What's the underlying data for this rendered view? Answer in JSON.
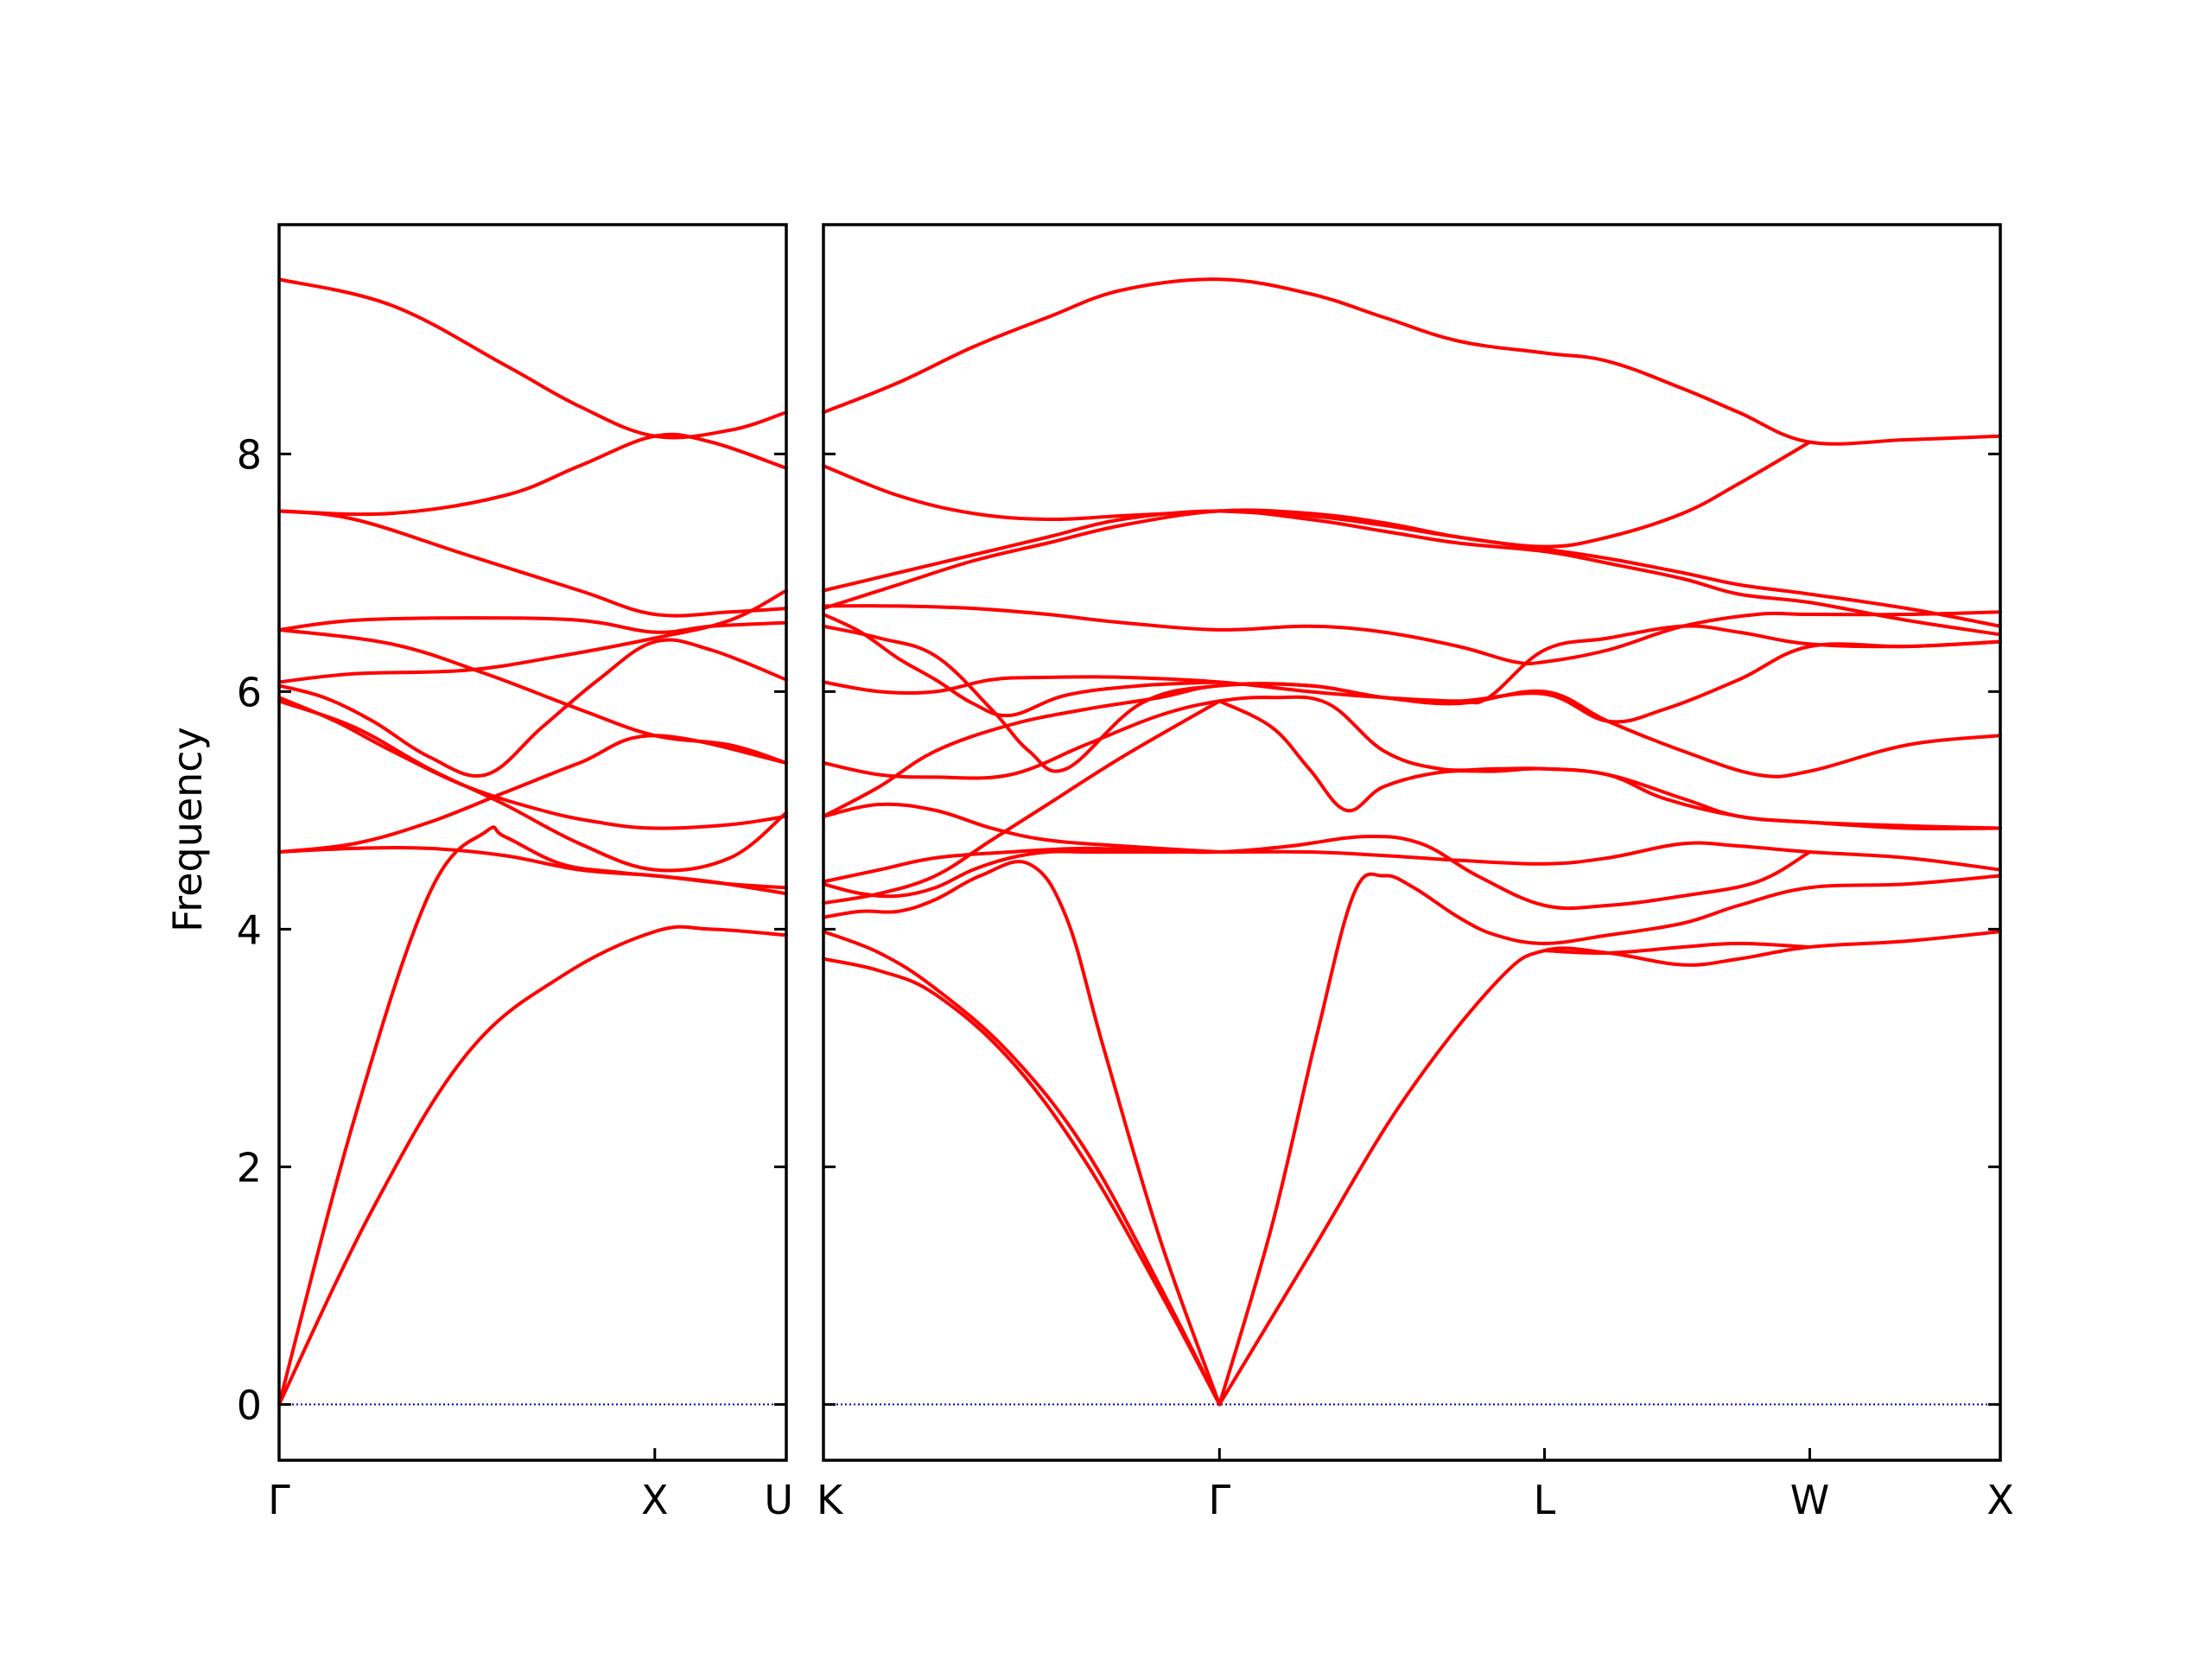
{
  "chart_data": {
    "type": "line",
    "ylabel": "Frequency",
    "ylim": [
      -0.47,
      9.93
    ],
    "yticks": [
      0,
      2,
      4,
      6,
      8
    ],
    "line_color": "#ff0000",
    "zero_line_color": "#0000aa",
    "panels": [
      {
        "xlim": [
          0,
          1.35
        ],
        "xticks": [
          {
            "x": 0,
            "label": "Γ"
          },
          {
            "x": 1.0,
            "label": "X"
          },
          {
            "x": 1.35,
            "label": "U"
          }
        ],
        "bands": [
          {
            "x": [
              0,
              0.2,
              0.4,
              0.55,
              0.6,
              0.75,
              0.9,
              1.0,
              1.15,
              1.35
            ],
            "y": [
              0,
              2.4,
              4.3,
              4.82,
              4.78,
              4.55,
              4.48,
              4.45,
              4.4,
              4.3
            ]
          },
          {
            "x": [
              0,
              0.25,
              0.5,
              0.75,
              1.0,
              1.15,
              1.35
            ],
            "y": [
              0,
              1.65,
              2.95,
              3.6,
              3.98,
              4.0,
              3.95
            ]
          },
          {
            "x": [
              0,
              0.3,
              0.6,
              0.8,
              1.0,
              1.2,
              1.35
            ],
            "y": [
              9.47,
              9.25,
              8.75,
              8.4,
              8.15,
              8.2,
              8.35
            ]
          },
          {
            "x": [
              0,
              0.3,
              0.6,
              0.8,
              1.0,
              1.15,
              1.35
            ],
            "y": [
              7.52,
              7.5,
              7.65,
              7.9,
              8.15,
              8.1,
              7.88
            ]
          },
          {
            "x": [
              0,
              0.2,
              0.5,
              0.8,
              1.0,
              1.2,
              1.35
            ],
            "y": [
              7.52,
              7.45,
              7.15,
              6.85,
              6.65,
              6.67,
              6.7
            ]
          },
          {
            "x": [
              0,
              0.2,
              0.5,
              0.8,
              1.0,
              1.15,
              1.35
            ],
            "y": [
              6.52,
              6.6,
              6.62,
              6.6,
              6.5,
              6.55,
              6.58
            ]
          },
          {
            "x": [
              0,
              0.3,
              0.55,
              0.8,
              1.0,
              1.2,
              1.35
            ],
            "y": [
              6.52,
              6.4,
              6.15,
              5.85,
              5.63,
              5.55,
              5.4
            ]
          },
          {
            "x": [
              0,
              0.2,
              0.5,
              0.75,
              1.0,
              1.2,
              1.35
            ],
            "y": [
              6.08,
              6.15,
              6.18,
              6.3,
              6.45,
              6.6,
              6.85
            ]
          },
          {
            "x": [
              0,
              0.12,
              0.25,
              0.4,
              0.55,
              0.7,
              0.85,
              1.0,
              1.15,
              1.35
            ],
            "y": [
              6.05,
              5.95,
              5.75,
              5.45,
              5.3,
              5.7,
              6.1,
              6.42,
              6.35,
              6.1
            ]
          },
          {
            "x": [
              0,
              0.15,
              0.3,
              0.5,
              0.7,
              0.85,
              1.0,
              1.2,
              1.35
            ],
            "y": [
              5.95,
              5.75,
              5.5,
              5.2,
              5.0,
              4.9,
              4.85,
              4.88,
              4.95
            ]
          },
          {
            "x": [
              0,
              0.2,
              0.4,
              0.6,
              0.8,
              1.0,
              1.2,
              1.35
            ],
            "y": [
              5.92,
              5.7,
              5.35,
              5.05,
              4.72,
              4.5,
              4.6,
              4.98
            ]
          },
          {
            "x": [
              0,
              0.2,
              0.4,
              0.6,
              0.8,
              1.0,
              1.35
            ],
            "y": [
              4.65,
              4.72,
              4.9,
              5.15,
              5.4,
              5.63,
              5.4
            ]
          },
          {
            "x": [
              0,
              0.2,
              0.4,
              0.6,
              0.8,
              1.0,
              1.2,
              1.35
            ],
            "y": [
              4.65,
              4.68,
              4.68,
              4.62,
              4.5,
              4.45,
              4.38,
              4.35
            ]
          }
        ]
      },
      {
        "xlim": [
          0,
          3.15
        ],
        "xticks": [
          {
            "x": 0,
            "label": "K"
          },
          {
            "x": 1.06,
            "label": "Γ"
          },
          {
            "x": 1.93,
            "label": "L"
          },
          {
            "x": 2.64,
            "label": "W"
          },
          {
            "x": 3.15,
            "label": "X"
          }
        ],
        "bands": [
          {
            "x": [
              0,
              0.15,
              0.3,
              0.5,
              0.7,
              0.9,
              1.06
            ],
            "y": [
              3.75,
              3.65,
              3.45,
              2.9,
              2.05,
              0.95,
              0
            ]
          },
          {
            "x": [
              0,
              0.15,
              0.3,
              0.5,
              0.7,
              0.9,
              1.06
            ],
            "y": [
              3.98,
              3.8,
              3.5,
              2.95,
              2.15,
              1.0,
              0
            ]
          },
          {
            "x": [
              0,
              0.1,
              0.2,
              0.3,
              0.42,
              0.55,
              0.65,
              0.75,
              0.9,
              1.06
            ],
            "y": [
              4.1,
              4.15,
              4.15,
              4.25,
              4.45,
              4.55,
              4.1,
              3.0,
              1.4,
              0
            ]
          },
          {
            "x": [
              1.06,
              1.2,
              1.32,
              1.42,
              1.5,
              1.58,
              1.7,
              1.8,
              1.93,
              2.1,
              2.3,
              2.45,
              2.64,
              2.9,
              3.15
            ],
            "y": [
              0,
              1.5,
              3.1,
              4.3,
              4.45,
              4.35,
              4.1,
              3.95,
              3.88,
              3.95,
              4.05,
              4.2,
              4.35,
              4.38,
              4.45
            ]
          },
          {
            "x": [
              1.06,
              1.3,
              1.55,
              1.8,
              1.93,
              2.1,
              2.3,
              2.45,
              2.64,
              2.9,
              3.15
            ],
            "y": [
              0,
              1.25,
              2.55,
              3.55,
              3.82,
              3.8,
              3.7,
              3.75,
              3.85,
              3.9,
              3.98
            ]
          },
          {
            "x": [
              1.93,
              2.1,
              2.3,
              2.45,
              2.64
            ],
            "y": [
              3.82,
              3.8,
              3.85,
              3.88,
              3.85
            ]
          },
          {
            "x": [
              0,
              0.1,
              0.2,
              0.3,
              0.4,
              0.5,
              0.6,
              0.7,
              0.85,
              1.06,
              1.3,
              1.5,
              1.7,
              1.93,
              2.1,
              2.3,
              2.45,
              2.64,
              2.9,
              3.15
            ],
            "y": [
              4.38,
              4.3,
              4.28,
              4.35,
              4.5,
              4.6,
              4.65,
              4.65,
              4.65,
              4.65,
              4.65,
              4.62,
              4.58,
              4.55,
              4.6,
              4.72,
              4.7,
              4.65,
              4.6,
              4.5
            ]
          },
          {
            "x": [
              0,
              0.15,
              0.3,
              0.5,
              0.7,
              0.9,
              1.06,
              1.25,
              1.45,
              1.6,
              1.75,
              1.93,
              2.1,
              2.3,
              2.5,
              2.64
            ],
            "y": [
              4.4,
              4.5,
              4.6,
              4.65,
              4.68,
              4.66,
              4.65,
              4.7,
              4.78,
              4.72,
              4.45,
              4.2,
              4.2,
              4.28,
              4.4,
              4.65
            ]
          },
          {
            "x": [
              0,
              0.15,
              0.3,
              0.45,
              0.6,
              0.8,
              1.06
            ],
            "y": [
              4.95,
              5.05,
              5.0,
              4.85,
              4.75,
              4.7,
              4.65
            ]
          },
          {
            "x": [
              0,
              0.15,
              0.3,
              0.45,
              0.6,
              0.8,
              1.06
            ],
            "y": [
              4.22,
              4.3,
              4.45,
              4.75,
              5.05,
              5.45,
              5.92
            ]
          },
          {
            "x": [
              1.06,
              1.2,
              1.3,
              1.4,
              1.5,
              1.65,
              1.8,
              1.93,
              2.1,
              2.3,
              2.45,
              2.64,
              2.9,
              3.15
            ],
            "y": [
              5.92,
              5.7,
              5.35,
              5.0,
              5.2,
              5.32,
              5.33,
              5.35,
              5.3,
              5.1,
              4.95,
              4.9,
              4.85,
              4.85
            ]
          },
          {
            "x": [
              0,
              0.15,
              0.3,
              0.5,
              0.7,
              0.9,
              1.06,
              1.2,
              1.35,
              1.5,
              1.65,
              1.8,
              1.93,
              2.1,
              2.25,
              2.45,
              2.64,
              2.9,
              3.15
            ],
            "y": [
              5.4,
              5.3,
              5.28,
              5.3,
              5.55,
              5.8,
              5.92,
              5.95,
              5.9,
              5.5,
              5.35,
              5.35,
              5.35,
              5.3,
              5.1,
              4.95,
              4.9,
              4.87,
              4.85
            ]
          },
          {
            "x": [
              0,
              0.15,
              0.3,
              0.5,
              0.7,
              0.9,
              1.06,
              1.3,
              1.5,
              1.7,
              1.93,
              2.1,
              2.3,
              2.5,
              2.64,
              2.9,
              3.15
            ],
            "y": [
              4.95,
              5.2,
              5.5,
              5.72,
              5.85,
              5.95,
              6.05,
              6.05,
              5.95,
              5.9,
              6.0,
              5.75,
              5.5,
              5.3,
              5.33,
              5.55,
              5.63
            ]
          },
          {
            "x": [
              0,
              0.15,
              0.3,
              0.45,
              0.55,
              0.65,
              0.85,
              1.06,
              1.3,
              1.5,
              1.7,
              1.93,
              2.1,
              2.25,
              2.45,
              2.64,
              2.9,
              3.15
            ],
            "y": [
              6.55,
              6.45,
              6.3,
              5.85,
              5.5,
              5.35,
              5.9,
              6.05,
              6.05,
              5.95,
              5.92,
              5.98,
              5.75,
              5.85,
              6.1,
              6.38,
              6.38,
              6.42
            ]
          },
          {
            "x": [
              0,
              0.15,
              0.3,
              0.45,
              0.6,
              0.8,
              1.06,
              1.3,
              1.5,
              1.7,
              1.78,
              1.93,
              2.1,
              2.3,
              2.45,
              2.64,
              2.9,
              3.15
            ],
            "y": [
              6.08,
              6.0,
              6.0,
              6.1,
              6.12,
              6.12,
              6.08,
              6.0,
              5.95,
              5.92,
              5.95,
              6.35,
              6.45,
              6.55,
              6.5,
              6.4,
              6.38,
              6.42
            ]
          },
          {
            "x": [
              0,
              0.2,
              0.4,
              0.6,
              0.8,
              1.06,
              1.3,
              1.5,
              1.7,
              1.85,
              1.93,
              2.1,
              2.3,
              2.5,
              2.64,
              2.9,
              3.15
            ],
            "y": [
              6.72,
              6.72,
              6.7,
              6.65,
              6.58,
              6.52,
              6.55,
              6.5,
              6.38,
              6.25,
              6.25,
              6.35,
              6.55,
              6.65,
              6.65,
              6.65,
              6.67
            ]
          },
          {
            "x": [
              0,
              0.1,
              0.2,
              0.3,
              0.4,
              0.5,
              0.65,
              0.85,
              1.06
            ],
            "y": [
              6.65,
              6.5,
              6.28,
              6.1,
              5.9,
              5.8,
              5.97,
              6.05,
              6.08
            ]
          },
          {
            "x": [
              0,
              0.2,
              0.4,
              0.6,
              0.8,
              1.06,
              1.3,
              1.5,
              1.7,
              1.93,
              2.1,
              2.3,
              2.45,
              2.64,
              2.9,
              3.15
            ],
            "y": [
              6.85,
              7.0,
              7.15,
              7.3,
              7.45,
              7.52,
              7.45,
              7.35,
              7.25,
              7.18,
              7.08,
              6.95,
              6.82,
              6.75,
              6.6,
              6.48
            ]
          },
          {
            "x": [
              0,
              0.2,
              0.4,
              0.6,
              0.8,
              1.06,
              1.3,
              1.5,
              1.7,
              1.93,
              2.1,
              2.3,
              2.45,
              2.64,
              2.9,
              3.15
            ],
            "y": [
              6.7,
              6.9,
              7.1,
              7.25,
              7.4,
              7.52,
              7.5,
              7.42,
              7.3,
              7.2,
              7.12,
              7.0,
              6.9,
              6.82,
              6.7,
              6.55
            ]
          },
          {
            "x": [
              0,
              0.2,
              0.4,
              0.6,
              0.8,
              1.06
            ],
            "y": [
              7.9,
              7.65,
              7.5,
              7.45,
              7.48,
              7.52
            ]
          },
          {
            "x": [
              1.06,
              1.3,
              1.5,
              1.7,
              1.93,
              2.1,
              2.3,
              2.45,
              2.64
            ],
            "y": [
              7.52,
              7.48,
              7.4,
              7.3,
              7.22,
              7.3,
              7.5,
              7.75,
              8.1
            ]
          },
          {
            "x": [
              0,
              0.2,
              0.4,
              0.6,
              0.8,
              1.06,
              1.3,
              1.5,
              1.7,
              1.93,
              2.1,
              2.3,
              2.45,
              2.64,
              2.9,
              3.15
            ],
            "y": [
              8.35,
              8.6,
              8.9,
              9.15,
              9.38,
              9.47,
              9.35,
              9.15,
              8.95,
              8.85,
              8.78,
              8.55,
              8.35,
              8.1,
              8.12,
              8.15
            ]
          }
        ]
      }
    ]
  }
}
